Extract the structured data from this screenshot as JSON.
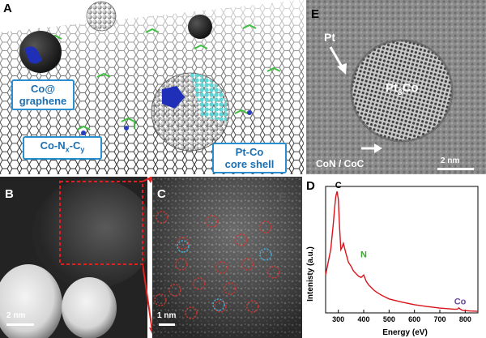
{
  "panels": {
    "A": {
      "letter": "A",
      "labels": {
        "co_graphene": [
          "Co@",
          "graphene"
        ],
        "co_nc": {
          "base1": "Co-N",
          "sub1": "x",
          "base2": "-C",
          "sub2": "y"
        },
        "ptco": [
          "Pt-Co",
          "core shell"
        ]
      }
    },
    "B": {
      "letter": "B",
      "scale": "2 nm"
    },
    "C": {
      "letter": "C",
      "scale": "1 nm",
      "faint_letter": "E"
    },
    "E": {
      "letter": "E",
      "pt": "Pt",
      "pt3co": {
        "base": "Pt",
        "sub": "3",
        "rest": "Co"
      },
      "con": "CoN / CoC",
      "scale": "2 nm"
    },
    "D": {
      "letter": "D"
    }
  },
  "colors": {
    "callout_border": "#2a8fd0",
    "eels_line": "#d8131b",
    "n_label": "#3fa535",
    "co_label": "#6a4aa0",
    "ring_red": "#d9302a",
    "ring_blue": "#3ab0e0"
  },
  "chart_data": {
    "type": "line",
    "xlabel": "Energy (eV)",
    "ylabel": "Intenisty (a.u.)",
    "xlim": [
      250,
      850
    ],
    "xticks": [
      300,
      400,
      500,
      600,
      700,
      800
    ],
    "yticks_shown": false,
    "grid": false,
    "series": [
      {
        "x": [
          250,
          270,
          280,
          285,
          290,
          295,
          300,
          305,
          310,
          315,
          320,
          330,
          340,
          350,
          360,
          370,
          380,
          390,
          400,
          410,
          420,
          430,
          440,
          450,
          470,
          500,
          550,
          600,
          650,
          700,
          750,
          760,
          770,
          775,
          780,
          785,
          790,
          800,
          820,
          850
        ],
        "y": [
          0.3,
          0.5,
          0.7,
          0.82,
          0.92,
          0.96,
          0.9,
          0.68,
          0.5,
          0.52,
          0.55,
          0.47,
          0.4,
          0.37,
          0.33,
          0.31,
          0.29,
          0.28,
          0.3,
          0.25,
          0.22,
          0.2,
          0.18,
          0.165,
          0.14,
          0.11,
          0.085,
          0.065,
          0.05,
          0.038,
          0.03,
          0.028,
          0.03,
          0.04,
          0.03,
          0.025,
          0.02,
          0.018,
          0.015,
          0.012
        ]
      }
    ],
    "annotations": [
      {
        "text": "C",
        "x": 300
      },
      {
        "text": "N",
        "x": 400
      },
      {
        "text": "Co",
        "x": 780
      }
    ]
  }
}
